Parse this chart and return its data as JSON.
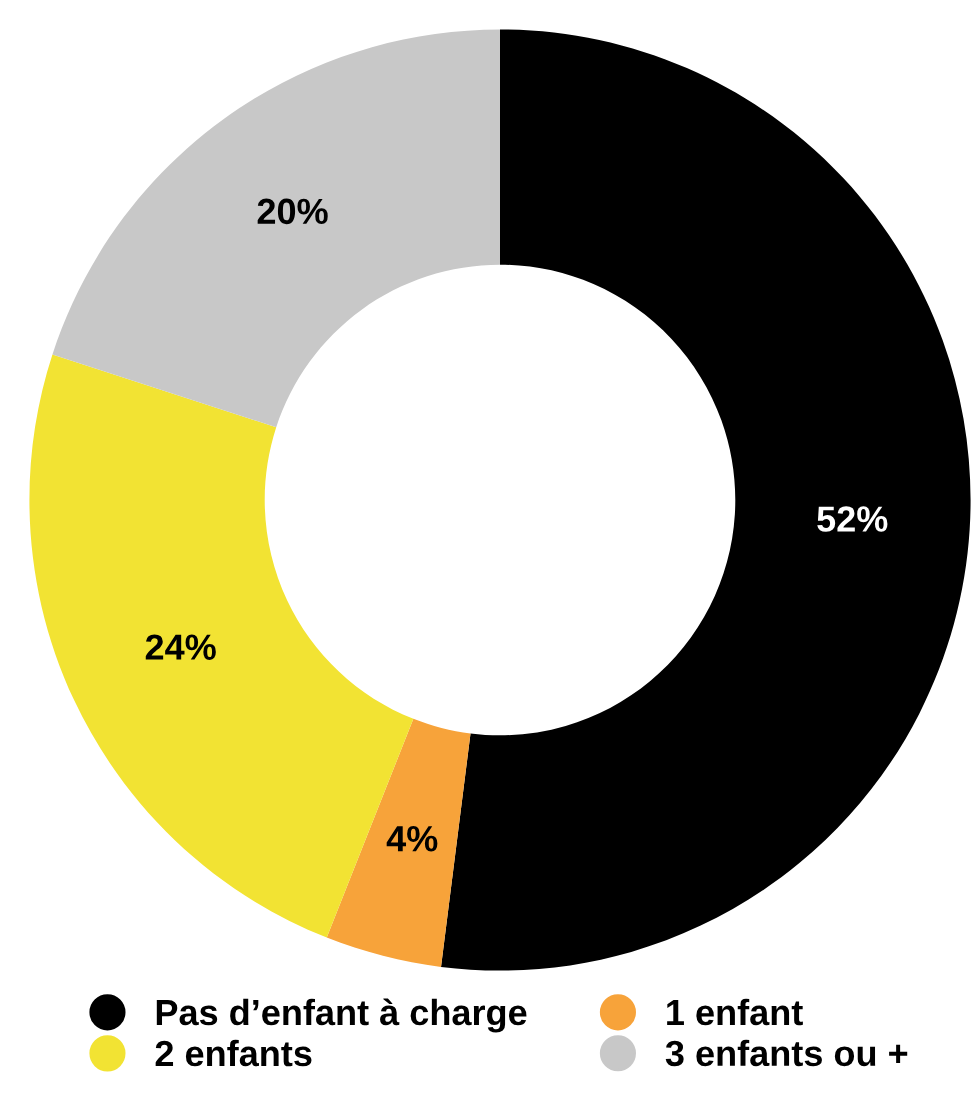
{
  "chart_data": {
    "type": "donut",
    "categories": [
      "Pas d’enfant à charge",
      "1 enfant",
      "2 enfants",
      "3 enfants ou +"
    ],
    "values": [
      52,
      4,
      24,
      20
    ],
    "value_labels": [
      "52%",
      "4%",
      "24%",
      "20%"
    ],
    "colors": [
      "#000000",
      "#f7a33a",
      "#f2e333",
      "#c8c8c8"
    ],
    "legend": "bottom"
  }
}
